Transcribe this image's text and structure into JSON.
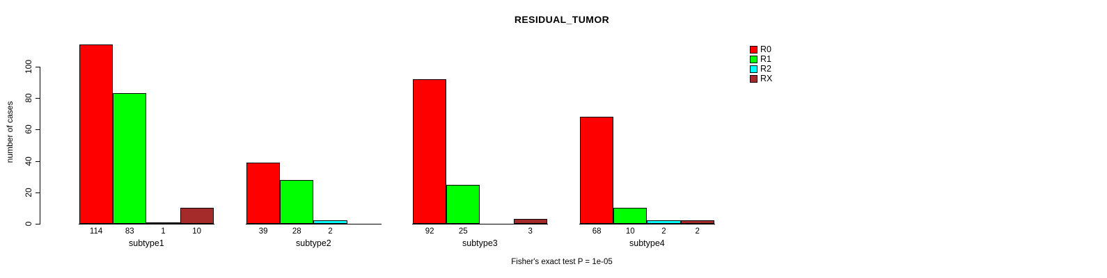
{
  "title": "RESIDUAL_TUMOR",
  "chart_data": {
    "type": "bar",
    "title": "RESIDUAL_TUMOR",
    "xlabel": "",
    "ylabel": "number of cases",
    "categories": [
      "subtype1",
      "subtype2",
      "subtype3",
      "subtype4"
    ],
    "series": [
      {
        "name": "R0",
        "color": "#FF0000",
        "values": [
          114,
          39,
          92,
          68
        ]
      },
      {
        "name": "R1",
        "color": "#00FF00",
        "values": [
          83,
          28,
          25,
          10
        ]
      },
      {
        "name": "R2",
        "color": "#00FFFF",
        "values": [
          1,
          2,
          0,
          2
        ]
      },
      {
        "name": "RX",
        "color": "#A52A2A",
        "values": [
          10,
          0,
          3,
          2
        ]
      }
    ],
    "bar_value_labels": [
      [
        "114",
        "83",
        "1",
        "10"
      ],
      [
        "39",
        "28",
        "2",
        ""
      ],
      [
        "92",
        "25",
        "",
        "3"
      ],
      [
        "68",
        "10",
        "2",
        "2"
      ]
    ],
    "yticks": [
      0,
      20,
      40,
      60,
      80,
      100
    ],
    "ylim": [
      0,
      114
    ],
    "grid": false,
    "legend_position": "right",
    "legend_entries": [
      "R0",
      "R1",
      "R2",
      "RX"
    ],
    "annotation": "Fisher's exact test P = 1e-05",
    "colors": {
      "R0": "#FF0000",
      "R1": "#00FF00",
      "R2": "#00FFFF",
      "RX": "#A52A2A",
      "axis": "#000000",
      "background": "#FFFFFF"
    }
  }
}
